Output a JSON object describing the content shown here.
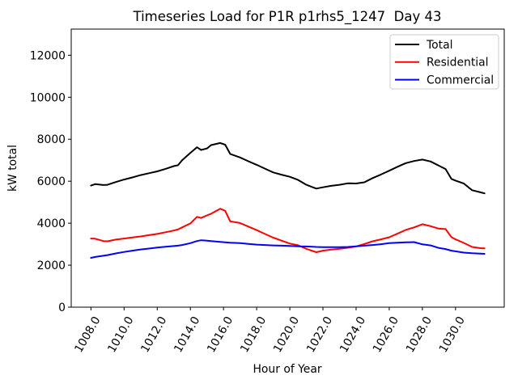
{
  "figure": {
    "background": "#ffffff"
  },
  "chart_data": {
    "type": "line",
    "title": "Timeseries Load for P1R p1rhs5_1247  Day 43",
    "xlabel": "Hour of Year",
    "ylabel": "kW total",
    "grid": false,
    "legend": {
      "position": "upper right",
      "entries": [
        "Total",
        "Residential",
        "Commercial"
      ]
    },
    "xlim": [
      1006.81,
      1032.94
    ],
    "ylim": [
      0,
      13246
    ],
    "xticks": [
      1008,
      1010,
      1012,
      1014,
      1016,
      1018,
      1020,
      1022,
      1024,
      1026,
      1028,
      1030
    ],
    "xtick_labels": [
      "1008.0",
      "1010.0",
      "1012.0",
      "1014.0",
      "1016.0",
      "1018.0",
      "1020.0",
      "1022.0",
      "1024.0",
      "1026.0",
      "1028.0",
      "1030.0"
    ],
    "yticks": [
      0,
      2000,
      4000,
      6000,
      8000,
      10000,
      12000
    ],
    "ytick_labels": [
      "0",
      "2000",
      "4000",
      "6000",
      "8000",
      "10000",
      "12000"
    ],
    "x": [
      1008,
      1008.25,
      1008.75,
      1009,
      1009.5,
      1010,
      1010.5,
      1011,
      1011.5,
      1012,
      1012.5,
      1013,
      1013.25,
      1013.5,
      1014,
      1014.4,
      1014.65,
      1015,
      1015.25,
      1015.8,
      1016.1,
      1016.4,
      1017,
      1017.5,
      1018,
      1018.5,
      1019,
      1019.5,
      1020,
      1020.5,
      1021,
      1021.6,
      1022,
      1022.5,
      1023,
      1023.5,
      1024,
      1024.5,
      1025,
      1025.5,
      1026,
      1026.5,
      1027,
      1027.5,
      1028,
      1028.5,
      1029,
      1029.4,
      1029.75,
      1030,
      1030.5,
      1031,
      1031.5,
      1031.75
    ],
    "series": [
      {
        "name": "Total",
        "color": "#000000",
        "values": [
          5790,
          5860,
          5820,
          5830,
          5960,
          6080,
          6180,
          6290,
          6380,
          6470,
          6590,
          6720,
          6760,
          7000,
          7350,
          7615,
          7490,
          7560,
          7720,
          7820,
          7740,
          7300,
          7130,
          6950,
          6780,
          6600,
          6420,
          6310,
          6210,
          6060,
          5830,
          5650,
          5710,
          5780,
          5830,
          5900,
          5890,
          5950,
          6150,
          6320,
          6500,
          6690,
          6860,
          6960,
          7030,
          6940,
          6740,
          6580,
          6110,
          6030,
          5890,
          5570,
          5470,
          5420
        ]
      },
      {
        "name": "Residential",
        "color": "#ff0000",
        "values": [
          3270,
          3260,
          3150,
          3140,
          3220,
          3270,
          3320,
          3370,
          3430,
          3490,
          3570,
          3650,
          3700,
          3800,
          3990,
          4300,
          4250,
          4370,
          4450,
          4690,
          4590,
          4090,
          4010,
          3840,
          3670,
          3490,
          3310,
          3170,
          3030,
          2950,
          2780,
          2620,
          2690,
          2740,
          2780,
          2830,
          2890,
          3010,
          3140,
          3230,
          3330,
          3500,
          3680,
          3800,
          3950,
          3860,
          3740,
          3720,
          3340,
          3230,
          3060,
          2870,
          2810,
          2800
        ]
      },
      {
        "name": "Commercial",
        "color": "#0000ff",
        "values": [
          2350,
          2390,
          2450,
          2480,
          2560,
          2630,
          2690,
          2750,
          2790,
          2840,
          2880,
          2910,
          2930,
          2960,
          3050,
          3150,
          3190,
          3170,
          3150,
          3110,
          3090,
          3070,
          3050,
          3010,
          2980,
          2960,
          2940,
          2930,
          2920,
          2900,
          2890,
          2870,
          2860,
          2860,
          2860,
          2870,
          2900,
          2930,
          2960,
          3000,
          3050,
          3070,
          3090,
          3100,
          2990,
          2940,
          2820,
          2770,
          2690,
          2660,
          2600,
          2570,
          2550,
          2540
        ]
      }
    ]
  }
}
